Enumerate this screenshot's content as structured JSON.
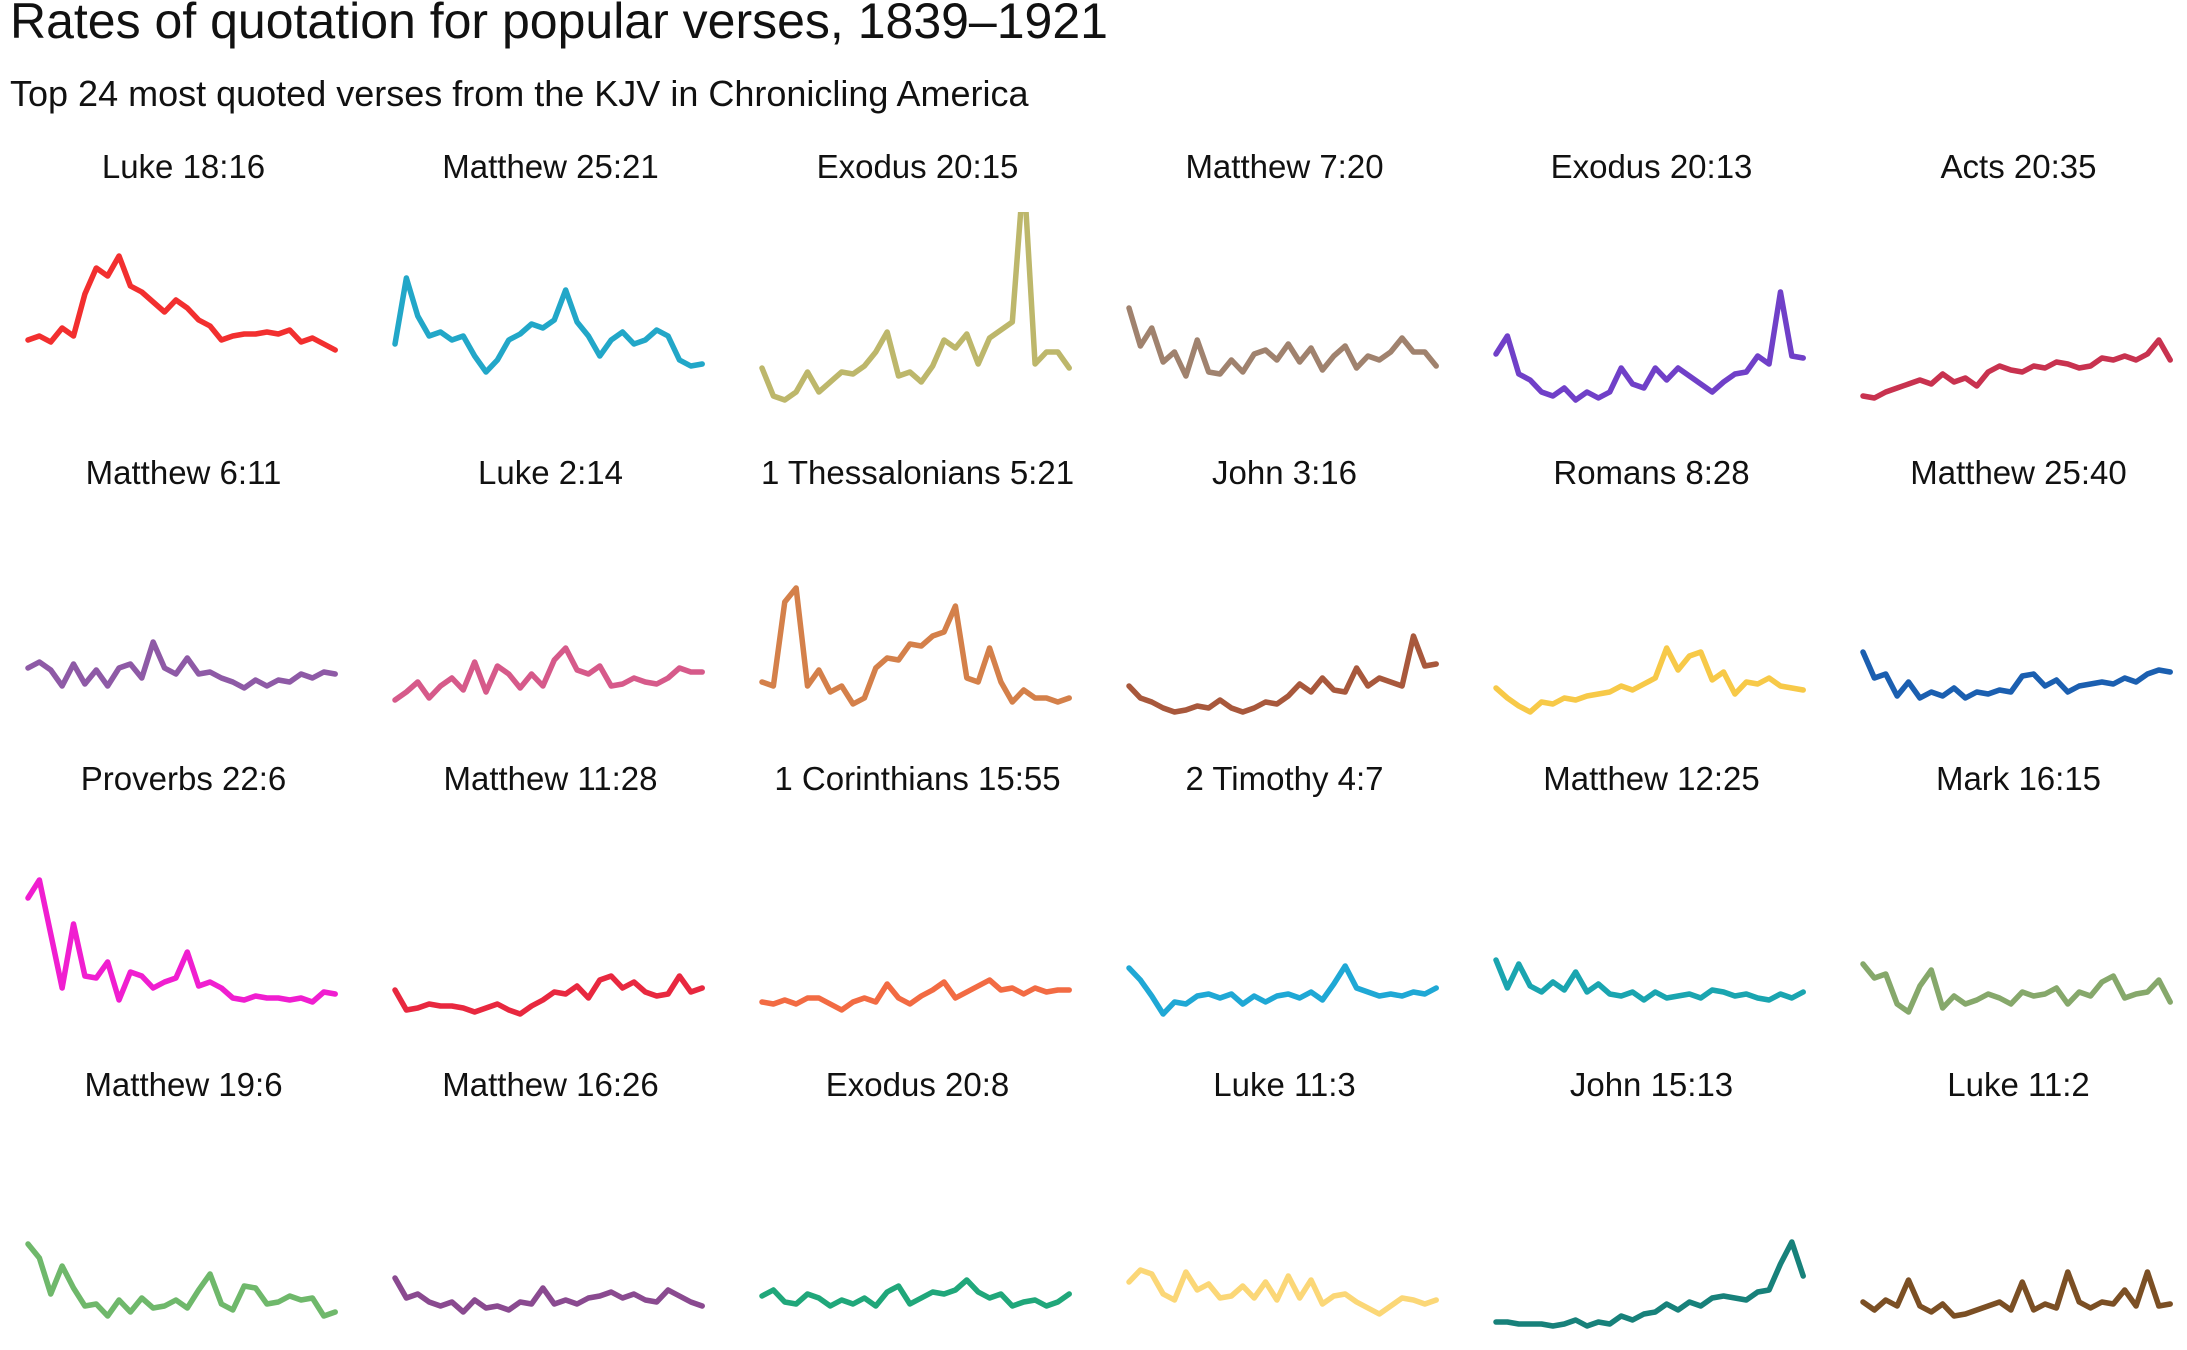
{
  "chart_data": {
    "type": "line",
    "title": "Rates of quotation for popular verses, 1839–1921",
    "subtitle": "Top 24 most quoted verses from the KJV in Chronicling America",
    "x": [
      1839,
      1842,
      1845,
      1848,
      1851,
      1854,
      1857,
      1860,
      1863,
      1866,
      1869,
      1872,
      1875,
      1878,
      1881,
      1884,
      1887,
      1890,
      1893,
      1896,
      1899,
      1902,
      1905,
      1908,
      1911,
      1914,
      1917,
      1920
    ],
    "xlim": [
      1839,
      1921
    ],
    "ylim": [
      0,
      10
    ],
    "series": [
      {
        "name": "Luke 18:16",
        "color": "#f22f2f",
        "values": [
          3.6,
          3.8,
          3.5,
          4.2,
          3.8,
          5.9,
          7.2,
          6.8,
          7.8,
          6.3,
          6.0,
          5.5,
          5.0,
          5.6,
          5.2,
          4.6,
          4.3,
          3.6,
          3.8,
          3.9,
          3.9,
          4.0,
          3.9,
          4.1,
          3.5,
          3.7,
          3.4,
          3.1
        ]
      },
      {
        "name": "Matthew 25:21",
        "color": "#22a7c8",
        "values": [
          3.4,
          6.7,
          4.8,
          3.8,
          4.0,
          3.6,
          3.8,
          2.8,
          2.0,
          2.6,
          3.6,
          3.9,
          4.4,
          4.2,
          4.6,
          6.1,
          4.5,
          3.8,
          2.8,
          3.6,
          4.0,
          3.4,
          3.6,
          4.1,
          3.8,
          2.6,
          2.3,
          2.4
        ]
      },
      {
        "name": "Exodus 20:15",
        "color": "#bdb76b",
        "values": [
          2.2,
          0.8,
          0.6,
          1.0,
          2.0,
          1.0,
          1.5,
          2.0,
          1.9,
          2.3,
          3.0,
          4.0,
          1.8,
          2.0,
          1.5,
          2.3,
          3.6,
          3.2,
          3.9,
          2.4,
          3.7,
          4.1,
          4.5,
          12.0,
          2.4,
          3.0,
          3.0,
          2.2
        ]
      },
      {
        "name": "Matthew 7:20",
        "color": "#a0826e",
        "values": [
          5.2,
          3.3,
          4.2,
          2.5,
          3.0,
          1.8,
          3.6,
          2.0,
          1.9,
          2.6,
          2.0,
          2.9,
          3.1,
          2.6,
          3.4,
          2.5,
          3.2,
          2.1,
          2.8,
          3.3,
          2.2,
          2.8,
          2.6,
          3.0,
          3.7,
          3.0,
          3.0,
          2.3
        ]
      },
      {
        "name": "Exodus 20:13",
        "color": "#7040c8",
        "values": [
          2.9,
          3.8,
          1.9,
          1.6,
          1.0,
          0.8,
          1.2,
          0.6,
          1.0,
          0.7,
          1.0,
          2.2,
          1.4,
          1.2,
          2.2,
          1.6,
          2.2,
          1.8,
          1.4,
          1.0,
          1.5,
          1.9,
          2.0,
          2.8,
          2.4,
          6.0,
          2.8,
          2.7
        ]
      },
      {
        "name": "Acts 20:35",
        "color": "#c8324f",
        "values": [
          0.8,
          0.7,
          1.0,
          1.2,
          1.4,
          1.6,
          1.4,
          1.9,
          1.5,
          1.7,
          1.3,
          2.0,
          2.3,
          2.1,
          2.0,
          2.3,
          2.2,
          2.5,
          2.4,
          2.2,
          2.3,
          2.7,
          2.6,
          2.8,
          2.6,
          2.9,
          3.6,
          2.6
        ]
      },
      {
        "name": "Matthew 6:11",
        "color": "#8e5aa6",
        "values": [
          2.5,
          2.8,
          2.4,
          1.6,
          2.7,
          1.7,
          2.4,
          1.6,
          2.5,
          2.7,
          2.0,
          3.8,
          2.5,
          2.2,
          3.0,
          2.2,
          2.3,
          2.0,
          1.8,
          1.5,
          1.9,
          1.6,
          1.9,
          1.8,
          2.2,
          2.0,
          2.3,
          2.2
        ]
      },
      {
        "name": "Luke 2:14",
        "color": "#d65a8a",
        "values": [
          0.9,
          1.3,
          1.8,
          1.0,
          1.6,
          2.0,
          1.4,
          2.8,
          1.3,
          2.6,
          2.2,
          1.5,
          2.2,
          1.6,
          2.9,
          3.5,
          2.4,
          2.2,
          2.6,
          1.6,
          1.7,
          2.0,
          1.8,
          1.7,
          2.0,
          2.5,
          2.3,
          2.3
        ]
      },
      {
        "name": "1 Thessalonians 5:21",
        "color": "#d4804a",
        "values": [
          1.8,
          1.6,
          5.8,
          6.5,
          1.6,
          2.4,
          1.3,
          1.6,
          0.7,
          1.0,
          2.5,
          3.0,
          2.9,
          3.7,
          3.6,
          4.1,
          4.3,
          5.6,
          2.0,
          1.8,
          3.5,
          1.8,
          0.8,
          1.4,
          1.0,
          1.0,
          0.8,
          1.0
        ]
      },
      {
        "name": "John 3:16",
        "color": "#a8583c",
        "values": [
          1.6,
          1.0,
          0.8,
          0.5,
          0.3,
          0.4,
          0.6,
          0.5,
          0.9,
          0.5,
          0.3,
          0.5,
          0.8,
          0.7,
          1.1,
          1.7,
          1.3,
          2.0,
          1.4,
          1.3,
          2.5,
          1.6,
          2.0,
          1.8,
          1.6,
          4.1,
          2.6,
          2.7
        ]
      },
      {
        "name": "Romans 8:28",
        "color": "#f7c948",
        "values": [
          1.5,
          1.0,
          0.6,
          0.3,
          0.8,
          0.7,
          1.0,
          0.9,
          1.1,
          1.2,
          1.3,
          1.6,
          1.4,
          1.7,
          2.0,
          3.5,
          2.4,
          3.1,
          3.3,
          1.9,
          2.3,
          1.2,
          1.8,
          1.7,
          2.0,
          1.6,
          1.5,
          1.4
        ]
      },
      {
        "name": "Matthew 25:40",
        "color": "#1b5fb0",
        "values": [
          3.3,
          2.0,
          2.2,
          1.1,
          1.8,
          1.0,
          1.3,
          1.1,
          1.5,
          1.0,
          1.3,
          1.2,
          1.4,
          1.3,
          2.1,
          2.2,
          1.6,
          1.9,
          1.3,
          1.6,
          1.7,
          1.8,
          1.7,
          2.0,
          1.8,
          2.2,
          2.4,
          2.3
        ]
      },
      {
        "name": "Proverbs 22:6",
        "color": "#f01ed0",
        "values": [
          6.3,
          7.2,
          4.5,
          1.8,
          5.0,
          2.4,
          2.3,
          3.1,
          1.2,
          2.6,
          2.4,
          1.8,
          2.1,
          2.3,
          3.6,
          1.9,
          2.1,
          1.8,
          1.3,
          1.2,
          1.4,
          1.3,
          1.3,
          1.2,
          1.3,
          1.1,
          1.6,
          1.5
        ]
      },
      {
        "name": "Matthew 11:28",
        "color": "#e8283f",
        "values": [
          1.7,
          0.7,
          0.8,
          1.0,
          0.9,
          0.9,
          0.8,
          0.6,
          0.8,
          1.0,
          0.7,
          0.5,
          0.9,
          1.2,
          1.6,
          1.5,
          1.9,
          1.3,
          2.2,
          2.4,
          1.8,
          2.1,
          1.6,
          1.4,
          1.5,
          2.4,
          1.6,
          1.8
        ]
      },
      {
        "name": "1 Corinthians 15:55",
        "color": "#f26b43",
        "values": [
          1.1,
          1.0,
          1.2,
          1.0,
          1.3,
          1.3,
          1.0,
          0.7,
          1.1,
          1.3,
          1.1,
          2.0,
          1.3,
          1.0,
          1.4,
          1.7,
          2.1,
          1.3,
          1.6,
          1.9,
          2.2,
          1.7,
          1.8,
          1.5,
          1.8,
          1.6,
          1.7,
          1.7
        ]
      },
      {
        "name": "2 Timothy 4:7",
        "color": "#1fa8d5",
        "values": [
          2.8,
          2.2,
          1.4,
          0.5,
          1.1,
          1.0,
          1.4,
          1.5,
          1.3,
          1.5,
          1.0,
          1.4,
          1.1,
          1.4,
          1.5,
          1.3,
          1.6,
          1.2,
          2.0,
          2.9,
          1.8,
          1.6,
          1.4,
          1.5,
          1.4,
          1.6,
          1.5,
          1.8
        ]
      },
      {
        "name": "Matthew 12:25",
        "color": "#1aa5b0",
        "values": [
          3.2,
          1.8,
          3.0,
          1.9,
          1.6,
          2.1,
          1.7,
          2.6,
          1.6,
          2.0,
          1.5,
          1.4,
          1.6,
          1.2,
          1.6,
          1.3,
          1.4,
          1.5,
          1.3,
          1.7,
          1.6,
          1.4,
          1.5,
          1.3,
          1.2,
          1.5,
          1.3,
          1.6
        ]
      },
      {
        "name": "Mark 16:15",
        "color": "#86a86b",
        "values": [
          3.0,
          2.3,
          2.5,
          1.0,
          0.6,
          1.9,
          2.7,
          0.8,
          1.4,
          1.0,
          1.2,
          1.5,
          1.3,
          1.0,
          1.6,
          1.4,
          1.5,
          1.8,
          1.0,
          1.6,
          1.4,
          2.1,
          2.4,
          1.3,
          1.5,
          1.6,
          2.2,
          1.1
        ]
      },
      {
        "name": "Matthew 19:6",
        "color": "#6fb86b",
        "values": [
          4.3,
          3.6,
          1.8,
          3.2,
          2.1,
          1.2,
          1.3,
          0.7,
          1.5,
          0.9,
          1.6,
          1.1,
          1.2,
          1.5,
          1.1,
          2.0,
          2.8,
          1.3,
          1.0,
          2.2,
          2.1,
          1.3,
          1.4,
          1.7,
          1.5,
          1.6,
          0.7,
          0.9
        ]
      },
      {
        "name": "Matthew 16:26",
        "color": "#8a4a90",
        "values": [
          2.6,
          1.6,
          1.8,
          1.4,
          1.2,
          1.4,
          0.9,
          1.5,
          1.1,
          1.2,
          1.0,
          1.4,
          1.3,
          2.1,
          1.3,
          1.5,
          1.3,
          1.6,
          1.7,
          1.9,
          1.6,
          1.8,
          1.5,
          1.4,
          2.0,
          1.7,
          1.4,
          1.2
        ]
      },
      {
        "name": "Exodus 20:8",
        "color": "#20a77a",
        "values": [
          1.7,
          2.0,
          1.4,
          1.3,
          1.8,
          1.6,
          1.2,
          1.5,
          1.3,
          1.6,
          1.2,
          1.9,
          2.2,
          1.3,
          1.6,
          1.9,
          1.8,
          2.0,
          2.5,
          1.9,
          1.6,
          1.8,
          1.2,
          1.4,
          1.5,
          1.2,
          1.4,
          1.8
        ]
      },
      {
        "name": "Luke 11:3",
        "color": "#fbd777",
        "values": [
          2.4,
          3.0,
          2.8,
          1.8,
          1.5,
          2.9,
          2.0,
          2.3,
          1.6,
          1.7,
          2.2,
          1.6,
          2.4,
          1.5,
          2.7,
          1.6,
          2.5,
          1.3,
          1.7,
          1.8,
          1.4,
          1.1,
          0.8,
          1.2,
          1.6,
          1.5,
          1.3,
          1.5
        ]
      },
      {
        "name": "John 15:13",
        "color": "#17817a",
        "values": [
          0.4,
          0.4,
          0.3,
          0.3,
          0.3,
          0.2,
          0.3,
          0.5,
          0.2,
          0.4,
          0.3,
          0.7,
          0.5,
          0.8,
          0.9,
          1.3,
          1.0,
          1.4,
          1.2,
          1.6,
          1.7,
          1.6,
          1.5,
          1.9,
          2.0,
          3.3,
          4.4,
          2.7
        ]
      },
      {
        "name": "Luke 11:2",
        "color": "#7b4f24",
        "values": [
          1.4,
          1.0,
          1.5,
          1.2,
          2.5,
          1.2,
          0.9,
          1.3,
          0.7,
          0.8,
          1.0,
          1.2,
          1.4,
          1.0,
          2.4,
          1.0,
          1.3,
          1.1,
          2.9,
          1.4,
          1.1,
          1.4,
          1.3,
          2.0,
          1.2,
          2.9,
          1.2,
          1.3
        ]
      }
    ]
  }
}
